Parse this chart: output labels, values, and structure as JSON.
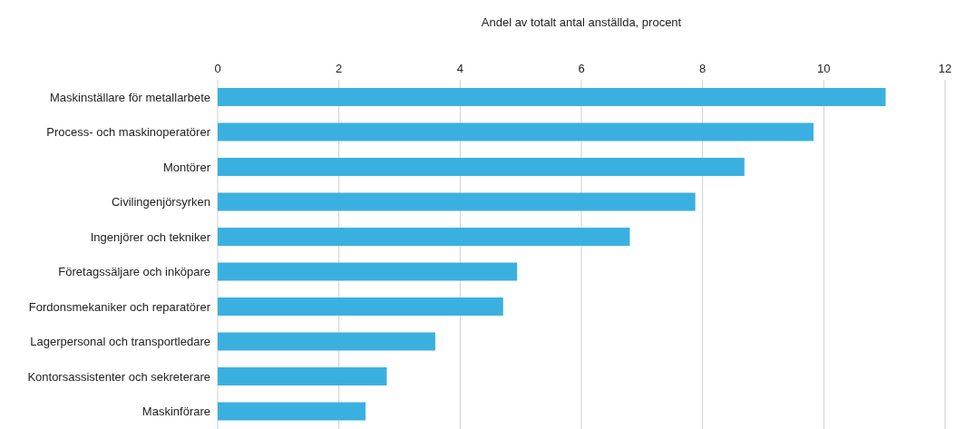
{
  "chart_data": {
    "type": "bar",
    "orientation": "horizontal",
    "xlabel": "Andel av totalt antal anställda, procent",
    "categories": [
      "Maskinställare för metallarbete",
      "Process- och maskinoperatörer",
      "Montörer",
      "Civilingenjörsyrken",
      "Ingenjörer och tekniker",
      "Företagssäljare och inköpare",
      "Fordonsmekaniker och reparatörer",
      "Lagerpersonal och transportledare",
      "Kontorsassistenter och sekreterare",
      "Maskinförare"
    ],
    "values": [
      11.02,
      9.83,
      8.69,
      7.88,
      6.8,
      4.94,
      4.71,
      3.59,
      2.79,
      2.44
    ],
    "color": "#3ab0e0",
    "xlim": [
      0,
      12
    ],
    "xticks": [
      0,
      2,
      4,
      6,
      8,
      10,
      12
    ],
    "grid": "x",
    "legend": false
  }
}
